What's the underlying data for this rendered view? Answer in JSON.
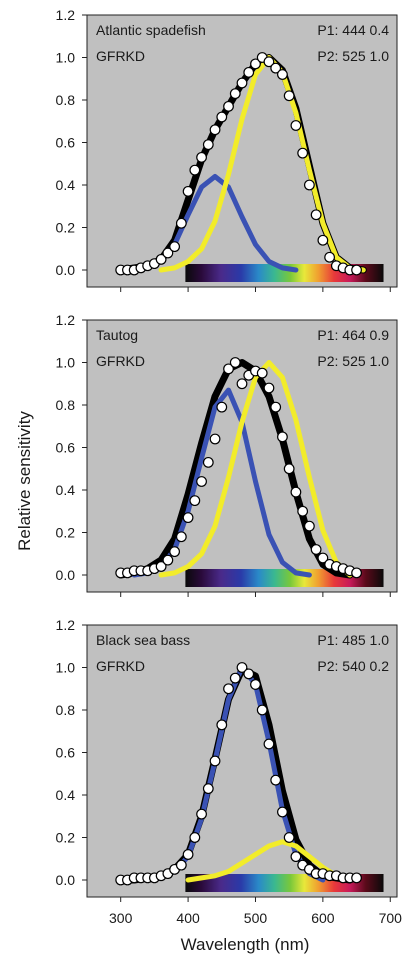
{
  "figure": {
    "ylabel": "Relative sensitivity",
    "xlabel": "Wavelength (nm)"
  },
  "chart_data": [
    {
      "type": "line",
      "panel": 1,
      "title": "Atlantic spadefish",
      "subtitle": "GFRKD",
      "annotations": [
        "P1: 444  0.4",
        "P2: 525  1.0"
      ],
      "xlim": [
        250,
        710
      ],
      "ylim": [
        -0.08,
        1.2
      ],
      "y_ticks": [
        "0.0",
        "0.2",
        "0.4",
        "0.6",
        "0.8",
        "1.0",
        "1.2"
      ],
      "x_ticks": [
        "300",
        "400",
        "500",
        "600",
        "700"
      ],
      "series": [
        {
          "color": "#000000",
          "x": [
            300,
            320,
            340,
            360,
            380,
            400,
            420,
            440,
            460,
            480,
            500,
            520,
            540,
            560,
            580,
            600,
            620,
            640,
            660
          ],
          "y": [
            0.0,
            0.01,
            0.02,
            0.05,
            0.14,
            0.33,
            0.52,
            0.66,
            0.77,
            0.88,
            0.97,
            1.0,
            0.94,
            0.76,
            0.49,
            0.22,
            0.06,
            0.01,
            0.0
          ]
        },
        {
          "color": "#3a52b4",
          "x": [
            320,
            340,
            360,
            380,
            400,
            420,
            440,
            460,
            480,
            500,
            520,
            540,
            560
          ],
          "y": [
            0.0,
            0.01,
            0.04,
            0.12,
            0.26,
            0.39,
            0.44,
            0.39,
            0.25,
            0.12,
            0.04,
            0.01,
            0.0
          ]
        },
        {
          "color": "#f2ec2a",
          "x": [
            360,
            380,
            400,
            420,
            440,
            460,
            480,
            500,
            520,
            540,
            560,
            580,
            600,
            620,
            640,
            660
          ],
          "y": [
            0.0,
            0.01,
            0.04,
            0.1,
            0.23,
            0.45,
            0.71,
            0.92,
            1.0,
            0.93,
            0.74,
            0.47,
            0.22,
            0.06,
            0.01,
            0.0
          ]
        },
        {
          "type": "scatter",
          "x": [
            300,
            310,
            320,
            330,
            340,
            350,
            360,
            370,
            380,
            390,
            400,
            410,
            420,
            430,
            440,
            450,
            460,
            470,
            480,
            490,
            500,
            510,
            520,
            530,
            540,
            550,
            560,
            570,
            580,
            590,
            600,
            610,
            620,
            630,
            640,
            650
          ],
          "y": [
            0.0,
            0.0,
            0.0,
            0.01,
            0.02,
            0.03,
            0.05,
            0.08,
            0.11,
            0.22,
            0.37,
            0.47,
            0.53,
            0.59,
            0.66,
            0.72,
            0.77,
            0.83,
            0.88,
            0.93,
            0.97,
            1.0,
            0.98,
            0.95,
            0.92,
            0.82,
            0.68,
            0.55,
            0.4,
            0.26,
            0.14,
            0.06,
            0.02,
            0.01,
            0.0,
            0.0
          ]
        }
      ]
    },
    {
      "type": "line",
      "panel": 2,
      "title": "Tautog",
      "subtitle": "GFRKD",
      "annotations": [
        "P1: 464  0.9",
        "P2: 525  1.0"
      ],
      "xlim": [
        250,
        710
      ],
      "ylim": [
        -0.08,
        1.2
      ],
      "y_ticks": [
        "0.0",
        "0.2",
        "0.4",
        "0.6",
        "0.8",
        "1.0",
        "1.2"
      ],
      "x_ticks": [
        "300",
        "400",
        "500",
        "600",
        "700"
      ],
      "series": [
        {
          "color": "#000000",
          "x": [
            300,
            320,
            340,
            360,
            380,
            400,
            420,
            440,
            460,
            480,
            500,
            520,
            540,
            560,
            580,
            600,
            620,
            640
          ],
          "y": [
            0.0,
            0.01,
            0.03,
            0.07,
            0.17,
            0.38,
            0.62,
            0.84,
            0.97,
            1.0,
            0.96,
            0.84,
            0.64,
            0.39,
            0.17,
            0.05,
            0.01,
            0.0
          ]
        },
        {
          "color": "#3a52b4",
          "x": [
            320,
            340,
            360,
            380,
            400,
            420,
            440,
            460,
            480,
            500,
            520,
            540,
            560,
            580
          ],
          "y": [
            0.0,
            0.01,
            0.04,
            0.12,
            0.3,
            0.55,
            0.79,
            0.87,
            0.72,
            0.44,
            0.19,
            0.06,
            0.01,
            0.0
          ]
        },
        {
          "color": "#f2ec2a",
          "x": [
            360,
            380,
            400,
            420,
            440,
            460,
            480,
            500,
            520,
            540,
            560,
            580,
            600,
            620,
            640
          ],
          "y": [
            0.0,
            0.01,
            0.04,
            0.1,
            0.23,
            0.46,
            0.72,
            0.93,
            1.0,
            0.93,
            0.73,
            0.46,
            0.21,
            0.06,
            0.0
          ]
        },
        {
          "type": "scatter",
          "x": [
            300,
            310,
            320,
            330,
            340,
            350,
            360,
            370,
            380,
            390,
            400,
            410,
            420,
            430,
            440,
            450,
            460,
            470,
            480,
            490,
            500,
            510,
            520,
            530,
            540,
            550,
            560,
            570,
            580,
            590,
            600,
            610,
            620,
            630,
            640,
            650
          ],
          "y": [
            0.01,
            0.01,
            0.02,
            0.02,
            0.02,
            0.03,
            0.04,
            0.07,
            0.11,
            0.18,
            0.27,
            0.35,
            0.44,
            0.53,
            0.64,
            0.79,
            0.97,
            1.0,
            0.9,
            0.94,
            0.96,
            0.95,
            0.88,
            0.79,
            0.65,
            0.5,
            0.39,
            0.3,
            0.23,
            0.12,
            0.08,
            0.05,
            0.04,
            0.03,
            0.02,
            0.01
          ]
        }
      ]
    },
    {
      "type": "line",
      "panel": 3,
      "title": "Black sea bass",
      "subtitle": "GFRKD",
      "annotations": [
        "P1: 485  1.0",
        "P2: 540  0.2"
      ],
      "xlim": [
        250,
        710
      ],
      "ylim": [
        -0.08,
        1.2
      ],
      "y_ticks": [
        "0.0",
        "0.2",
        "0.4",
        "0.6",
        "0.8",
        "1.0",
        "1.2"
      ],
      "x_ticks": [
        "300",
        "400",
        "500",
        "600",
        "700"
      ],
      "series": [
        {
          "color": "#000000",
          "x": [
            300,
            320,
            340,
            360,
            380,
            400,
            420,
            440,
            460,
            480,
            500,
            520,
            540,
            560,
            580,
            600,
            620,
            640
          ],
          "y": [
            0.0,
            0.0,
            0.01,
            0.02,
            0.05,
            0.12,
            0.3,
            0.57,
            0.85,
            0.99,
            0.96,
            0.73,
            0.42,
            0.19,
            0.07,
            0.02,
            0.01,
            0.0
          ]
        },
        {
          "color": "#3a52b4",
          "x": [
            340,
            360,
            380,
            400,
            420,
            440,
            460,
            480,
            500,
            520,
            540,
            560,
            580,
            600
          ],
          "y": [
            0.0,
            0.01,
            0.04,
            0.11,
            0.29,
            0.56,
            0.85,
            1.0,
            0.92,
            0.65,
            0.33,
            0.12,
            0.03,
            0.0
          ]
        },
        {
          "color": "#f2ec2a",
          "x": [
            400,
            420,
            440,
            460,
            480,
            500,
            520,
            540,
            560,
            580,
            600,
            620,
            640
          ],
          "y": [
            0.0,
            0.01,
            0.02,
            0.04,
            0.08,
            0.12,
            0.16,
            0.18,
            0.16,
            0.11,
            0.06,
            0.02,
            0.0
          ]
        },
        {
          "type": "scatter",
          "x": [
            300,
            310,
            320,
            330,
            340,
            350,
            360,
            370,
            380,
            390,
            400,
            410,
            420,
            430,
            440,
            450,
            460,
            470,
            480,
            490,
            500,
            510,
            520,
            530,
            540,
            550,
            560,
            570,
            580,
            590,
            600,
            610,
            620,
            630,
            640,
            650
          ],
          "y": [
            0.0,
            0.0,
            0.01,
            0.01,
            0.01,
            0.01,
            0.02,
            0.03,
            0.05,
            0.07,
            0.12,
            0.2,
            0.31,
            0.43,
            0.56,
            0.73,
            0.9,
            0.95,
            1.0,
            0.97,
            0.92,
            0.8,
            0.64,
            0.47,
            0.32,
            0.2,
            0.11,
            0.07,
            0.05,
            0.03,
            0.03,
            0.02,
            0.02,
            0.01,
            0.01,
            0.01
          ]
        }
      ]
    }
  ]
}
